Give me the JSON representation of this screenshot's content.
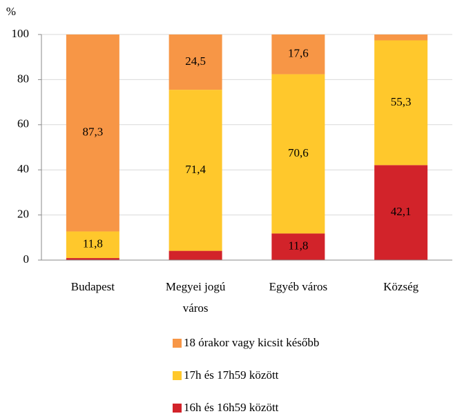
{
  "chart_data": {
    "type": "stacked_bar",
    "y_unit": "%",
    "categories": [
      "Budapest",
      "Megyei jogú\nváros",
      "Egyéb város",
      "Község"
    ],
    "series": [
      {
        "name": "16h és 16h59 között",
        "color": "#d2232a",
        "values": [
          0.9,
          4.1,
          11.8,
          42.1
        ],
        "value_labels": [
          null,
          null,
          "11,8",
          "42,1"
        ]
      },
      {
        "name": "17h és 17h59 között",
        "color": "#ffc82c",
        "values": [
          11.8,
          71.4,
          70.6,
          55.3
        ],
        "value_labels": [
          "11,8",
          "71,4",
          "70,6",
          "55,3"
        ]
      },
      {
        "name": "18 órakor vagy kicsit később",
        "color": "#f79646",
        "values": [
          87.3,
          24.5,
          17.6,
          2.6
        ],
        "value_labels": [
          "87,3",
          "24,5",
          "17,6",
          null
        ]
      }
    ],
    "ylim": [
      0,
      100
    ],
    "yticks": [
      0,
      20,
      40,
      60,
      80,
      100
    ],
    "grid": true
  }
}
